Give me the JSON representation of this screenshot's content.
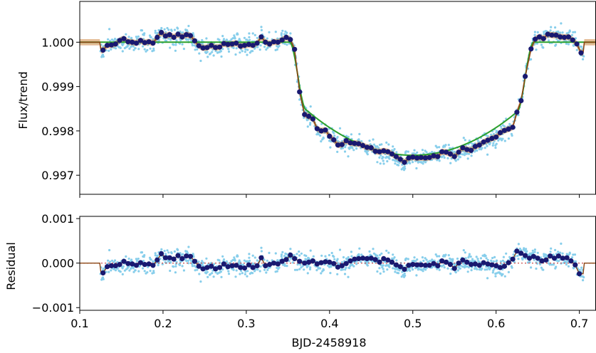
{
  "chart_data": [
    {
      "type": "scatter",
      "panel": "top",
      "title": "",
      "xlabel": "",
      "ylabel": "Flux/trend",
      "xlim": [
        0.1,
        0.72
      ],
      "ylim": [
        0.99657,
        1.00092
      ],
      "yticks": [
        0.997,
        0.998,
        0.999,
        1.0
      ],
      "ytick_labels": [
        "0.997",
        "0.998",
        "0.999",
        "1.000"
      ],
      "xticks": [
        0.1,
        0.2,
        0.3,
        0.4,
        0.5,
        0.6,
        0.7
      ],
      "grid": false,
      "colors": {
        "raw_points": "#87ceeb",
        "binned_points": "#191970",
        "transit_model": "#2ca02c",
        "gp_model": "#8b4513",
        "gp_band": "#cd853f",
        "axes": "#000000"
      },
      "transit_model": {
        "baseline": 1.0,
        "ingress_start": 0.352,
        "full_start": 0.372,
        "full_end": 0.625,
        "egress_end": 0.645,
        "depth_at_contact": 0.00155,
        "depth_center": 0.00255,
        "center": 0.5
      },
      "binned_points": [
        [
          0.128,
          0.99982
        ],
        [
          0.133,
          0.99993
        ],
        [
          0.138,
          0.99994
        ],
        [
          0.143,
          0.99996
        ],
        [
          0.148,
          1.00004
        ],
        [
          0.153,
          1.00008
        ],
        [
          0.158,
          1.00001
        ],
        [
          0.163,
          1.0
        ],
        [
          0.168,
          0.99998
        ],
        [
          0.173,
          1.00004
        ],
        [
          0.178,
          0.99999
        ],
        [
          0.183,
          1.00001
        ],
        [
          0.188,
          0.99998
        ],
        [
          0.193,
          1.00011
        ],
        [
          0.198,
          1.00022
        ],
        [
          0.203,
          1.00014
        ],
        [
          0.208,
          1.00017
        ],
        [
          0.213,
          1.00011
        ],
        [
          0.218,
          1.00018
        ],
        [
          0.223,
          1.00012
        ],
        [
          0.228,
          1.00017
        ],
        [
          0.233,
          1.00015
        ],
        [
          0.238,
          1.00003
        ],
        [
          0.243,
          0.99992
        ],
        [
          0.248,
          0.99987
        ],
        [
          0.253,
          0.99988
        ],
        [
          0.258,
          0.99993
        ],
        [
          0.263,
          0.99988
        ],
        [
          0.268,
          0.99989
        ],
        [
          0.273,
          0.99997
        ],
        [
          0.278,
          0.99995
        ],
        [
          0.283,
          0.99996
        ],
        [
          0.288,
          0.99998
        ],
        [
          0.293,
          0.99991
        ],
        [
          0.298,
          0.99993
        ],
        [
          0.303,
          0.99995
        ],
        [
          0.308,
          0.99993
        ],
        [
          0.313,
          0.99998
        ],
        [
          0.318,
          1.00012
        ],
        [
          0.323,
          1.0
        ],
        [
          0.328,
          0.99996
        ],
        [
          0.333,
          1.00001
        ],
        [
          0.338,
          1.0
        ],
        [
          0.343,
          1.00005
        ],
        [
          0.348,
          1.00011
        ],
        [
          0.353,
          1.00006
        ],
        [
          0.358,
          0.99984
        ],
        [
          0.364,
          0.99888
        ],
        [
          0.37,
          0.99837
        ],
        [
          0.375,
          0.99833
        ],
        [
          0.38,
          0.99827
        ],
        [
          0.385,
          0.99805
        ],
        [
          0.39,
          0.998
        ],
        [
          0.395,
          0.99802
        ],
        [
          0.4,
          0.99788
        ],
        [
          0.405,
          0.9978
        ],
        [
          0.41,
          0.99768
        ],
        [
          0.415,
          0.99769
        ],
        [
          0.42,
          0.99778
        ],
        [
          0.425,
          0.99773
        ],
        [
          0.43,
          0.99772
        ],
        [
          0.435,
          0.99771
        ],
        [
          0.44,
          0.99767
        ],
        [
          0.445,
          0.99763
        ],
        [
          0.45,
          0.99762
        ],
        [
          0.455,
          0.99754
        ],
        [
          0.46,
          0.99753
        ],
        [
          0.465,
          0.99755
        ],
        [
          0.47,
          0.99753
        ],
        [
          0.475,
          0.99748
        ],
        [
          0.48,
          0.99742
        ],
        [
          0.485,
          0.99736
        ],
        [
          0.49,
          0.99729
        ],
        [
          0.495,
          0.99739
        ],
        [
          0.5,
          0.99741
        ],
        [
          0.505,
          0.99739
        ],
        [
          0.51,
          0.9974
        ],
        [
          0.515,
          0.99739
        ],
        [
          0.52,
          0.9974
        ],
        [
          0.525,
          0.99744
        ],
        [
          0.53,
          0.99742
        ],
        [
          0.535,
          0.99753
        ],
        [
          0.54,
          0.99752
        ],
        [
          0.545,
          0.99748
        ],
        [
          0.55,
          0.99742
        ],
        [
          0.555,
          0.99752
        ],
        [
          0.56,
          0.99762
        ],
        [
          0.565,
          0.99758
        ],
        [
          0.57,
          0.99756
        ],
        [
          0.575,
          0.99765
        ],
        [
          0.58,
          0.99768
        ],
        [
          0.585,
          0.99775
        ],
        [
          0.59,
          0.99779
        ],
        [
          0.595,
          0.99783
        ],
        [
          0.6,
          0.99786
        ],
        [
          0.605,
          0.99796
        ],
        [
          0.61,
          0.99801
        ],
        [
          0.615,
          0.99804
        ],
        [
          0.62,
          0.99808
        ],
        [
          0.625,
          0.99842
        ],
        [
          0.63,
          0.99868
        ],
        [
          0.635,
          0.99923
        ],
        [
          0.642,
          0.99985
        ],
        [
          0.647,
          1.00007
        ],
        [
          0.652,
          1.00012
        ],
        [
          0.657,
          1.00008
        ],
        [
          0.662,
          1.00018
        ],
        [
          0.667,
          1.00016
        ],
        [
          0.672,
          1.00016
        ],
        [
          0.677,
          1.00012
        ],
        [
          0.682,
          1.00011
        ],
        [
          0.687,
          1.00012
        ],
        [
          0.692,
          1.00005
        ],
        [
          0.697,
          0.99996
        ],
        [
          0.702,
          0.99976
        ]
      ]
    },
    {
      "type": "scatter",
      "panel": "bottom",
      "title": "",
      "xlabel": "BJD-2458918",
      "ylabel": "Residual",
      "xlim": [
        0.1,
        0.72
      ],
      "ylim": [
        -0.00106,
        0.00105
      ],
      "yticks": [
        -0.001,
        0.0,
        0.001
      ],
      "ytick_labels": [
        "−0.001",
        "0.000",
        "0.001"
      ],
      "xticks": [
        0.1,
        0.2,
        0.3,
        0.4,
        0.5,
        0.6,
        0.7
      ],
      "xtick_labels": [
        "0.1",
        "0.2",
        "0.3",
        "0.4",
        "0.5",
        "0.6",
        "0.7"
      ],
      "grid": false,
      "zero_line": {
        "y": 0.0,
        "style": "dotted",
        "color": "#cd5c5c"
      },
      "binned_points": [
        [
          0.128,
          -0.00022
        ],
        [
          0.133,
          -8e-05
        ],
        [
          0.138,
          -6e-05
        ],
        [
          0.143,
          -6e-05
        ],
        [
          0.148,
          -3e-05
        ],
        [
          0.153,
          4e-05
        ],
        [
          0.158,
          -1e-05
        ],
        [
          0.163,
          -2e-05
        ],
        [
          0.168,
          -5e-05
        ],
        [
          0.173,
          1e-05
        ],
        [
          0.178,
          -3e-05
        ],
        [
          0.183,
          -2e-05
        ],
        [
          0.188,
          -5e-05
        ],
        [
          0.193,
          7e-05
        ],
        [
          0.198,
          0.00021
        ],
        [
          0.203,
          0.00012
        ],
        [
          0.208,
          0.00012
        ],
        [
          0.213,
          9e-05
        ],
        [
          0.218,
          0.00017
        ],
        [
          0.223,
          0.0001
        ],
        [
          0.228,
          0.00016
        ],
        [
          0.233,
          0.00015
        ],
        [
          0.238,
          4e-05
        ],
        [
          0.243,
          -7e-05
        ],
        [
          0.248,
          -0.00013
        ],
        [
          0.253,
          -0.0001
        ],
        [
          0.258,
          -7e-05
        ],
        [
          0.263,
          -0.00013
        ],
        [
          0.268,
          -0.0001
        ],
        [
          0.273,
          -2e-05
        ],
        [
          0.278,
          -8e-05
        ],
        [
          0.283,
          -6e-05
        ],
        [
          0.288,
          -5e-05
        ],
        [
          0.293,
          -0.0001
        ],
        [
          0.298,
          -0.00011
        ],
        [
          0.303,
          -4e-05
        ],
        [
          0.308,
          -0.0001
        ],
        [
          0.313,
          -6e-05
        ],
        [
          0.318,
          0.00012
        ],
        [
          0.323,
          -6e-05
        ],
        [
          0.328,
          -3e-05
        ],
        [
          0.333,
          0.0
        ],
        [
          0.338,
          -2e-05
        ],
        [
          0.343,
          4e-05
        ],
        [
          0.348,
          8e-05
        ],
        [
          0.353,
          0.00018
        ],
        [
          0.358,
          0.0001
        ],
        [
          0.364,
          4e-05
        ],
        [
          0.37,
          0.0
        ],
        [
          0.375,
          2e-05
        ],
        [
          0.38,
          5e-05
        ],
        [
          0.385,
          -2e-05
        ],
        [
          0.39,
          1e-05
        ],
        [
          0.395,
          3e-05
        ],
        [
          0.4,
          2e-05
        ],
        [
          0.405,
          -1e-05
        ],
        [
          0.41,
          -9e-05
        ],
        [
          0.415,
          -6e-05
        ],
        [
          0.42,
          -1e-05
        ],
        [
          0.425,
          5e-05
        ],
        [
          0.43,
          9e-05
        ],
        [
          0.435,
          0.0001
        ],
        [
          0.44,
          0.00011
        ],
        [
          0.445,
          0.0001
        ],
        [
          0.45,
          0.00011
        ],
        [
          0.455,
          8e-05
        ],
        [
          0.46,
          2e-05
        ],
        [
          0.465,
          0.0001
        ],
        [
          0.47,
          7e-05
        ],
        [
          0.475,
          2e-05
        ],
        [
          0.48,
          -4e-05
        ],
        [
          0.485,
          -8e-05
        ],
        [
          0.49,
          -0.00014
        ],
        [
          0.495,
          -5e-05
        ],
        [
          0.5,
          -3e-05
        ],
        [
          0.505,
          -4e-05
        ],
        [
          0.51,
          -4e-05
        ],
        [
          0.515,
          -5e-05
        ],
        [
          0.52,
          -5e-05
        ],
        [
          0.525,
          -1e-05
        ],
        [
          0.53,
          -6e-05
        ],
        [
          0.535,
          5e-05
        ],
        [
          0.54,
          2e-05
        ],
        [
          0.545,
          -3e-05
        ],
        [
          0.55,
          -0.00012
        ],
        [
          0.555,
          0.0
        ],
        [
          0.56,
          7e-05
        ],
        [
          0.565,
          2e-05
        ],
        [
          0.57,
          -3e-05
        ],
        [
          0.575,
          -2e-05
        ],
        [
          0.58,
          -5e-05
        ],
        [
          0.585,
          1e-05
        ],
        [
          0.59,
          -2e-05
        ],
        [
          0.595,
          -4e-05
        ],
        [
          0.6,
          -6e-05
        ],
        [
          0.605,
          -0.0001
        ],
        [
          0.61,
          -7e-05
        ],
        [
          0.615,
          1e-05
        ],
        [
          0.62,
          9e-05
        ],
        [
          0.625,
          0.00027
        ],
        [
          0.63,
          0.00022
        ],
        [
          0.635,
          0.00017
        ],
        [
          0.64,
          0.00011
        ],
        [
          0.645,
          0.00015
        ],
        [
          0.65,
          0.00011
        ],
        [
          0.655,
          5e-05
        ],
        [
          0.66,
          7e-05
        ],
        [
          0.665,
          0.00016
        ],
        [
          0.67,
          0.00011
        ],
        [
          0.675,
          0.00016
        ],
        [
          0.68,
          0.00011
        ],
        [
          0.685,
          0.00012
        ],
        [
          0.69,
          5e-05
        ],
        [
          0.695,
          -4e-05
        ],
        [
          0.7,
          -0.00024
        ]
      ]
    }
  ]
}
